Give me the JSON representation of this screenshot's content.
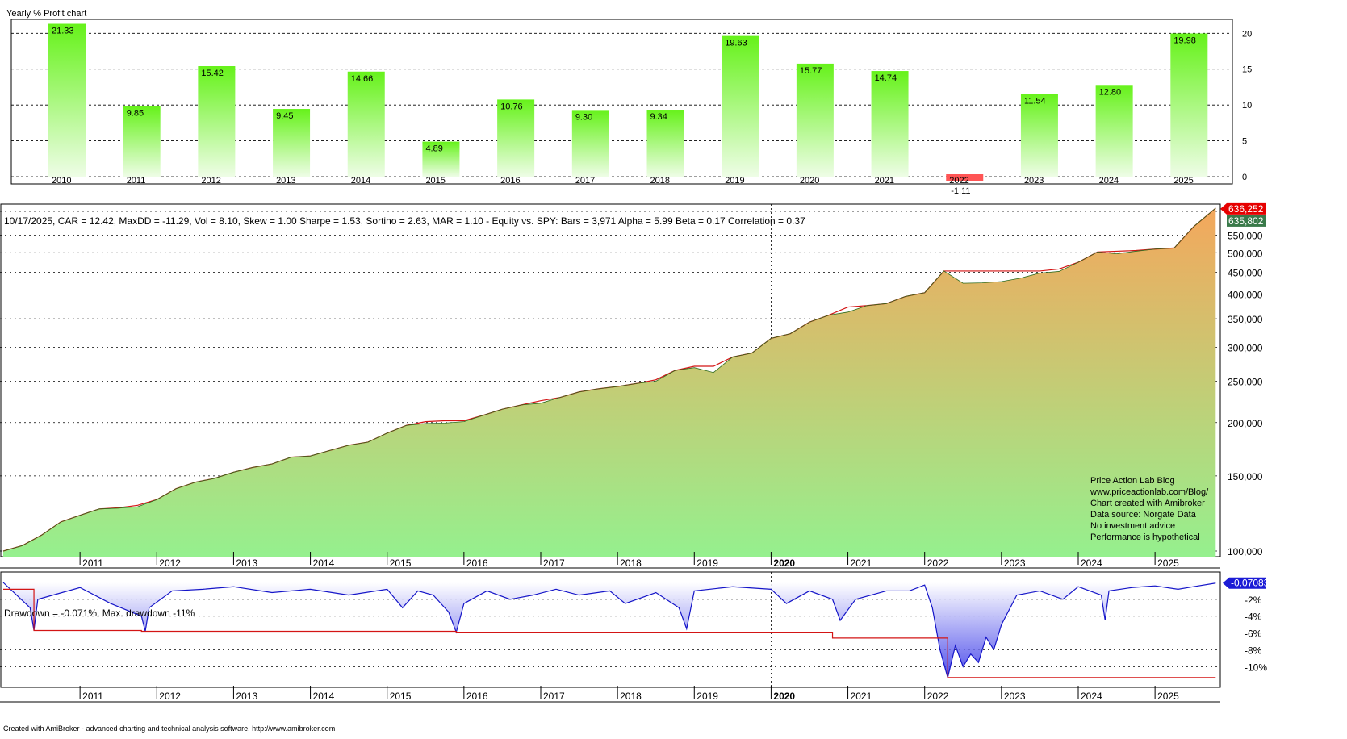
{
  "footer_text": "Created with AmiBroker - advanced charting and technical analysis software. http://www.amibroker.com",
  "colors": {
    "bar_top": "#66f21a",
    "bar_bottom": "#eefde6",
    "neg_bar": "#ff5555",
    "equity_top": "#f4a75c",
    "equity_bottom": "#95f08e",
    "equity_line": "#2e6b1e",
    "peak_line": "#d31515",
    "dd_line": "#1515c8",
    "dd_fill_top": "#ffffff",
    "dd_fill_bottom": "#3333e8",
    "price_tag_red": "#e60000",
    "price_tag_green": "#3a7a4a",
    "dd_tag": "#1c1cd6"
  },
  "chart_data": [
    {
      "type": "bar",
      "title": "Yearly % Profit chart",
      "categories": [
        "2010",
        "2011",
        "2012",
        "2013",
        "2014",
        "2015",
        "2016",
        "2017",
        "2018",
        "2019",
        "2020",
        "2021",
        "2022",
        "2023",
        "2024",
        "2025"
      ],
      "values": [
        21.33,
        9.85,
        15.42,
        9.45,
        14.66,
        4.89,
        10.76,
        9.3,
        9.34,
        19.63,
        15.77,
        14.74,
        -1.11,
        11.54,
        12.8,
        19.98
      ],
      "labels": [
        "21.33",
        "9.85",
        "15.42",
        "9.45",
        "14.66",
        "4.89",
        "10.76",
        "9.30",
        "9.34",
        "19.63",
        "15.77",
        "14.74",
        "-1.11",
        "11.54",
        "12.80",
        "19.98"
      ],
      "ylim": [
        0,
        21.5
      ],
      "y_ticks": [
        "0",
        "5",
        "10",
        "15",
        "20"
      ],
      "grid": true
    },
    {
      "type": "area",
      "title": "10/17/2025, CAR = 12.42, MaxDD = -11.29, Vol = 8.10, Skew = 1.00 Sharpe = 1.53, Sortino = 2.63, MAR = 1.10 - Equity vs. SPY:  Bars = 3,971 Alpha = 5.99 Beta = 0.17 Correlation = 0.37",
      "log_scale": true,
      "ylim": [
        97000,
        650000
      ],
      "y_ticks": [
        "100,000",
        "150,000",
        "200,000",
        "250,000",
        "300,000",
        "350,000",
        "400,000",
        "450,000",
        "500,000",
        "550,000"
      ],
      "last_value_labels": [
        "636,252",
        "635,802"
      ],
      "x_ticks": [
        "2011",
        "2012",
        "2013",
        "2014",
        "2015",
        "2016",
        "2017",
        "2018",
        "2019",
        "2020",
        "2021",
        "2022",
        "2023",
        "2024",
        "2025"
      ],
      "x": [
        "2010.00",
        "2010.25",
        "2010.50",
        "2010.75",
        "2011.00",
        "2011.25",
        "2011.50",
        "2011.75",
        "2012.00",
        "2012.25",
        "2012.50",
        "2012.75",
        "2013.00",
        "2013.25",
        "2013.50",
        "2013.75",
        "2014.00",
        "2014.25",
        "2014.50",
        "2014.75",
        "2015.00",
        "2015.25",
        "2015.50",
        "2015.75",
        "2016.00",
        "2016.25",
        "2016.50",
        "2016.75",
        "2017.00",
        "2017.25",
        "2017.50",
        "2017.75",
        "2018.00",
        "2018.25",
        "2018.50",
        "2018.75",
        "2019.00",
        "2019.25",
        "2019.50",
        "2019.75",
        "2020.00",
        "2020.25",
        "2020.50",
        "2020.75",
        "2021.00",
        "2021.25",
        "2021.50",
        "2021.75",
        "2022.00",
        "2022.25",
        "2022.50",
        "2022.75",
        "2023.00",
        "2023.25",
        "2023.50",
        "2023.75",
        "2024.00",
        "2024.25",
        "2024.50",
        "2024.75",
        "2025.00",
        "2025.25",
        "2025.50",
        "2025.79"
      ],
      "values": [
        100000,
        103000,
        109000,
        117000,
        121300,
        125500,
        126000,
        127000,
        132000,
        140000,
        145000,
        148000,
        153000,
        157000,
        160000,
        166000,
        167000,
        172000,
        177000,
        180000,
        189000,
        197000,
        199000,
        199500,
        201000,
        208000,
        215000,
        220000,
        222000,
        229000,
        236000,
        240000,
        243000,
        247000,
        250000,
        265000,
        269000,
        262000,
        285000,
        291000,
        315000,
        323000,
        344000,
        357000,
        363000,
        376000,
        380000,
        395000,
        403000,
        453000,
        424000,
        425000,
        428000,
        436000,
        448000,
        452000,
        475000,
        502000,
        497000,
        504000,
        510000,
        513000,
        575000,
        636252
      ],
      "peak_values": [
        100000,
        103000,
        109000,
        117000,
        121300,
        125500,
        126300,
        128000,
        132000,
        140000,
        145000,
        148000,
        153000,
        157000,
        160000,
        166000,
        167000,
        172000,
        177000,
        180000,
        189000,
        197000,
        201000,
        202000,
        202000,
        208000,
        215000,
        220000,
        225000,
        229000,
        236000,
        240000,
        243000,
        247000,
        252000,
        265000,
        271000,
        271000,
        285000,
        291000,
        315000,
        323000,
        344000,
        357000,
        373000,
        376000,
        380000,
        395000,
        403000,
        453000,
        453000,
        453000,
        453000,
        453000,
        453000,
        458000,
        475000,
        502000,
        504000,
        506000,
        510000,
        513000,
        575000,
        636252
      ]
    },
    {
      "type": "area",
      "title": "Drawdown = -0.071%, Max. drawdown -11%",
      "last_value_label": "-0.07083",
      "ylim": [
        -11.5,
        0
      ],
      "y_ticks": [
        "-2%",
        "-4%",
        "-6%",
        "-8%",
        "-10%"
      ],
      "x_ticks": [
        "2011",
        "2012",
        "2013",
        "2014",
        "2015",
        "2016",
        "2017",
        "2018",
        "2019",
        "2020",
        "2021",
        "2022",
        "2023",
        "2024",
        "2025"
      ],
      "x": [
        "2010.00",
        "2010.35",
        "2010.40",
        "2010.45",
        "2011.00",
        "2011.40",
        "2011.80",
        "2011.85",
        "2011.90",
        "2012.20",
        "2012.60",
        "2013.00",
        "2013.50",
        "2014.00",
        "2014.50",
        "2015.00",
        "2015.20",
        "2015.40",
        "2015.60",
        "2015.80",
        "2015.90",
        "2016.00",
        "2016.30",
        "2016.60",
        "2016.90",
        "2017.20",
        "2017.50",
        "2017.90",
        "2018.10",
        "2018.50",
        "2018.80",
        "2018.90",
        "2019.00",
        "2019.50",
        "2020.00",
        "2020.20",
        "2020.50",
        "2020.80",
        "2020.90",
        "2021.10",
        "2021.50",
        "2021.80",
        "2022.00",
        "2022.10",
        "2022.20",
        "2022.30",
        "2022.40",
        "2022.50",
        "2022.60",
        "2022.70",
        "2022.80",
        "2022.90",
        "2023.00",
        "2023.20",
        "2023.50",
        "2023.80",
        "2024.00",
        "2024.30",
        "2024.35",
        "2024.40",
        "2024.70",
        "2025.00",
        "2025.30",
        "2025.50",
        "2025.79"
      ],
      "values": [
        0,
        -3.0,
        -5.7,
        -2.0,
        -0.6,
        -2.5,
        -4.0,
        -5.8,
        -3.0,
        -1.0,
        -0.8,
        -0.5,
        -1.2,
        -0.8,
        -1.5,
        -0.8,
        -3.0,
        -1.0,
        -1.5,
        -3.5,
        -5.9,
        -2.5,
        -1.0,
        -2.0,
        -1.5,
        -0.8,
        -1.5,
        -1.0,
        -2.5,
        -1.2,
        -3.0,
        -5.5,
        -1.0,
        -0.5,
        -0.8,
        -2.5,
        -1.0,
        -2.0,
        -4.5,
        -2.0,
        -1.0,
        -1.0,
        -0.3,
        -3.0,
        -8.0,
        -11.29,
        -7.5,
        -10.0,
        -8.5,
        -9.5,
        -6.5,
        -8.0,
        -5.0,
        -1.5,
        -1.0,
        -2.0,
        -0.5,
        -1.5,
        -4.5,
        -1.0,
        -0.6,
        -0.4,
        -0.8,
        -0.5,
        -0.071
      ],
      "max_dd_x": [
        "2010.00",
        "2010.40",
        "2011.80",
        "2015.90",
        "2020.80",
        "2022.30",
        "2025.79"
      ],
      "max_dd_values": [
        -0.8,
        -5.7,
        -5.8,
        -5.9,
        -6.6,
        -11.29,
        -11.29
      ]
    }
  ],
  "watermark": [
    "Price Action Lab Blog",
    "www.priceactionlab.com/Blog/",
    "Chart created with Amibroker",
    "Data source: Norgate Data",
    "No investment advice",
    "Performance is hypothetical"
  ]
}
